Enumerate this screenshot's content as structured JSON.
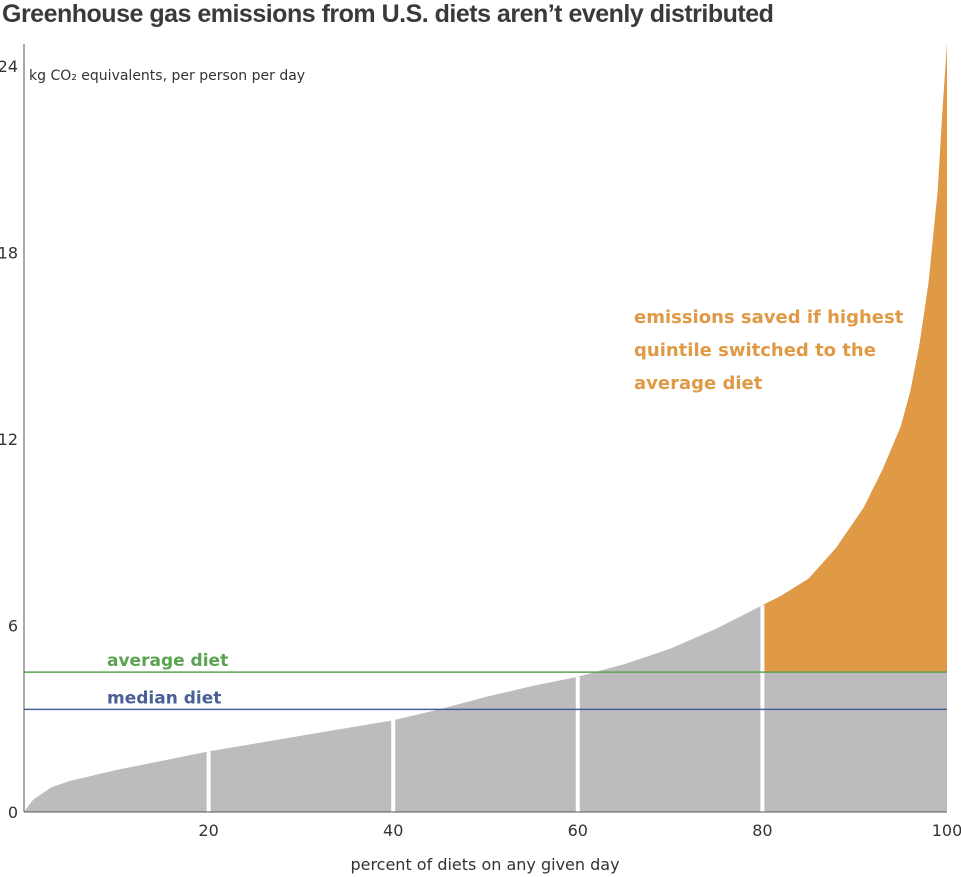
{
  "chart_data": {
    "type": "area",
    "title": "Greenhouse gas emissions from U.S. diets aren’t evenly distributed",
    "ylabel": "kg CO₂ equivalents, per person per day",
    "xlabel": "percent of diets on any given day",
    "xlim": [
      0,
      100
    ],
    "ylim": [
      0,
      24.7
    ],
    "x_ticks": [
      "20",
      "40",
      "60",
      "80",
      "100"
    ],
    "y_ticks": [
      "0",
      "6",
      "12",
      "18",
      "24"
    ],
    "x_tick_values": [
      20,
      40,
      60,
      80,
      100
    ],
    "y_tick_values": [
      0,
      6,
      12,
      18,
      24
    ],
    "quintile_dividers": [
      20,
      40,
      60,
      80
    ],
    "curve": {
      "x": [
        0,
        1,
        3,
        5,
        10,
        15,
        20,
        25,
        30,
        35,
        40,
        45,
        50,
        55,
        60,
        65,
        70,
        75,
        80,
        82,
        85,
        88,
        91,
        93,
        95,
        96,
        97,
        98,
        99,
        99.5,
        100
      ],
      "y": [
        0,
        0.4,
        0.8,
        1.0,
        1.35,
        1.65,
        1.95,
        2.2,
        2.45,
        2.7,
        2.95,
        3.3,
        3.7,
        4.05,
        4.35,
        4.75,
        5.25,
        5.9,
        6.65,
        6.95,
        7.5,
        8.5,
        9.8,
        11.0,
        12.4,
        13.5,
        15.0,
        17.0,
        20.0,
        22.5,
        24.7
      ]
    },
    "reference_lines": [
      {
        "name": "average diet",
        "y": 4.5,
        "color": "#5aa350"
      },
      {
        "name": "median diet",
        "y": 3.3,
        "color": "#4a5f95"
      }
    ],
    "annotation": "emissions saved if highest quintile switched to the average diet",
    "annotation_lines": [
      "emissions saved if highest",
      "quintile switched to the",
      "average diet"
    ],
    "highlight_range_x": [
      80,
      100
    ],
    "colors": {
      "area": "#bcbcbc",
      "highlight": "#e09a46",
      "axis": "#555555",
      "divider": "#ffffff"
    }
  }
}
